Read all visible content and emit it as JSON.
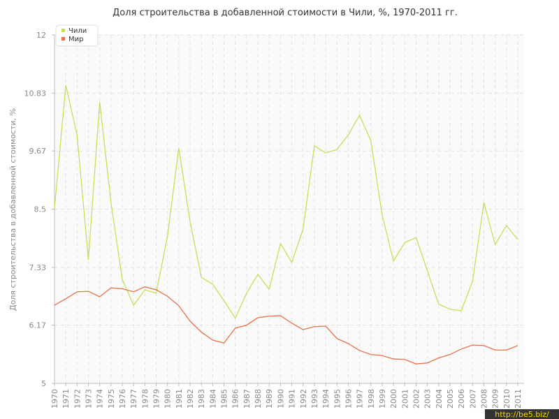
{
  "chart_data": {
    "type": "line",
    "title": "Доля строительства в добавленной стоимости в Чили, %, 1970-2011 гг.",
    "y_label": "Доля строительства в добавленной стоимости, %",
    "categories": [
      "1970",
      "1971",
      "1972",
      "1973",
      "1974",
      "1975",
      "1976",
      "1977",
      "1978",
      "1979",
      "1980",
      "1981",
      "1982",
      "1983",
      "1984",
      "1985",
      "1986",
      "1987",
      "1988",
      "1989",
      "1990",
      "1991",
      "1992",
      "1993",
      "1994",
      "1995",
      "1996",
      "1997",
      "1998",
      "1999",
      "2000",
      "2001",
      "2002",
      "2003",
      "2004",
      "2005",
      "2006",
      "2007",
      "2008",
      "2009",
      "2010",
      "2011"
    ],
    "series": [
      {
        "name": "Чили",
        "color": "#c5df58",
        "values": [
          8.52,
          10.99,
          9.99,
          7.48,
          10.65,
          8.63,
          7.09,
          6.57,
          6.88,
          6.81,
          7.96,
          9.73,
          8.24,
          7.13,
          6.99,
          6.66,
          6.31,
          6.81,
          7.19,
          6.89,
          7.81,
          7.43,
          8.1,
          9.77,
          9.63,
          9.7,
          9.99,
          10.39,
          9.87,
          8.38,
          7.46,
          7.83,
          7.93,
          7.26,
          6.59,
          6.49,
          6.46,
          7.05,
          8.63,
          7.79,
          8.17,
          7.89
        ]
      },
      {
        "name": "Мир",
        "color": "#e8704a",
        "values": [
          6.57,
          6.7,
          6.84,
          6.85,
          6.74,
          6.92,
          6.9,
          6.84,
          6.94,
          6.88,
          6.75,
          6.56,
          6.25,
          6.03,
          5.87,
          5.81,
          6.11,
          6.17,
          6.32,
          6.35,
          6.36,
          6.21,
          6.08,
          6.14,
          6.15,
          5.9,
          5.8,
          5.66,
          5.58,
          5.56,
          5.49,
          5.48,
          5.39,
          5.41,
          5.51,
          5.58,
          5.69,
          5.77,
          5.76,
          5.67,
          5.67,
          5.76
        ]
      }
    ],
    "ylim": [
      5,
      12
    ],
    "yticks": [
      5,
      6.17,
      7.33,
      8.5,
      9.67,
      10.83,
      12
    ],
    "grid": true,
    "legend": "top-left",
    "watermark": "http://be5.biz/"
  }
}
